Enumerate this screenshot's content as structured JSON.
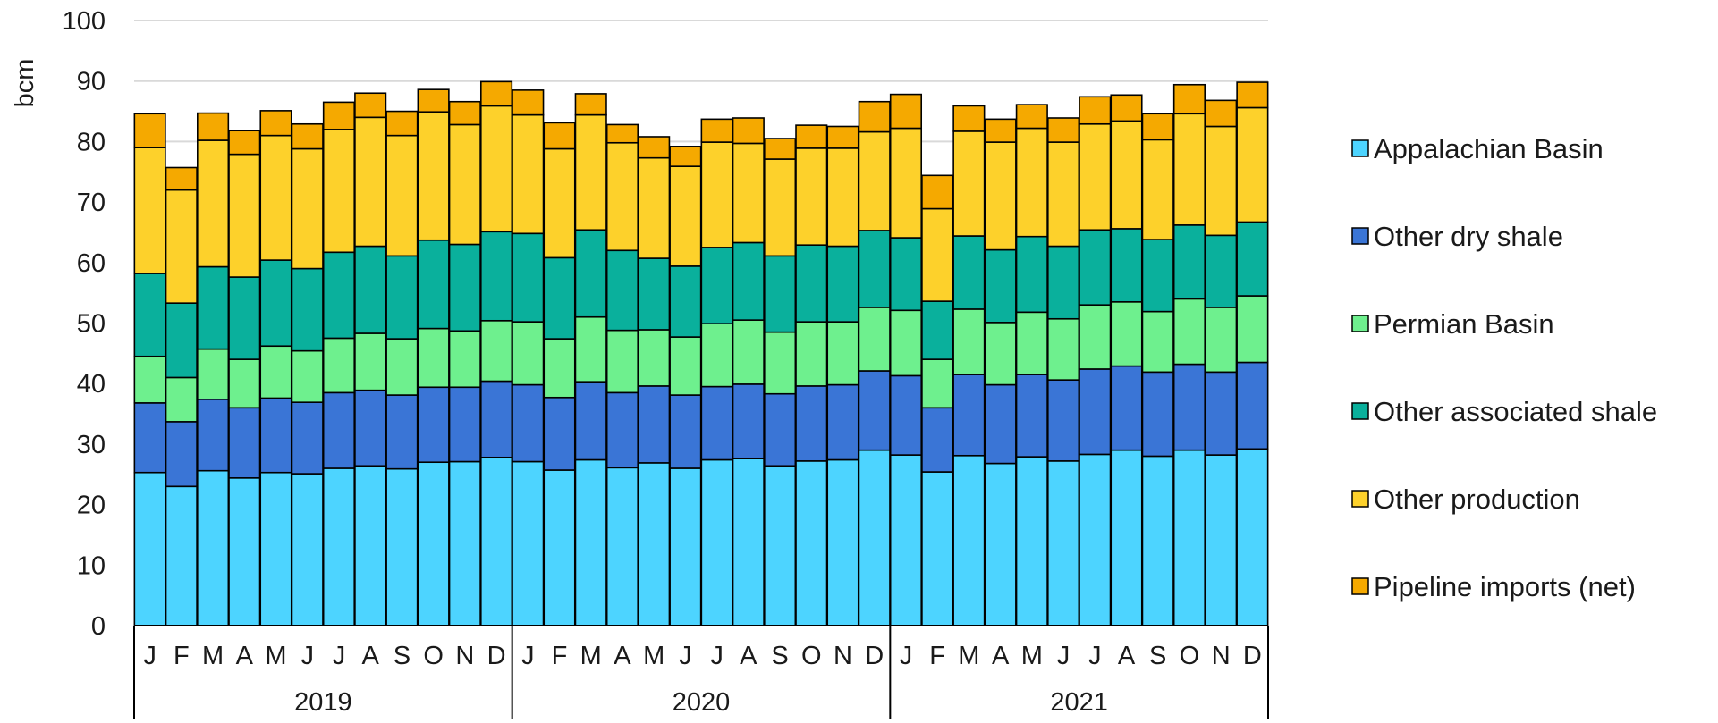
{
  "chart_data": {
    "type": "bar",
    "stacked": true,
    "title": "",
    "xlabel": "",
    "ylabel": "bcm",
    "ylim": [
      0,
      100
    ],
    "yticks": [
      0,
      10,
      20,
      30,
      40,
      50,
      60,
      70,
      80,
      90,
      100
    ],
    "grid": "horizontal",
    "legend_position": "right",
    "years": [
      {
        "label": "2019",
        "months": 12
      },
      {
        "label": "2020",
        "months": 12
      },
      {
        "label": "2021",
        "months": 12
      }
    ],
    "categories": [
      "J",
      "F",
      "M",
      "A",
      "M",
      "J",
      "J",
      "A",
      "S",
      "O",
      "N",
      "D",
      "J",
      "F",
      "M",
      "A",
      "M",
      "J",
      "J",
      "A",
      "S",
      "O",
      "N",
      "D",
      "J",
      "F",
      "M",
      "A",
      "M",
      "J",
      "J",
      "A",
      "S",
      "O",
      "N",
      "D"
    ],
    "series": [
      {
        "name": "Appalachian Basin",
        "color": "#4dd4ff",
        "values": [
          25.3,
          23.0,
          25.6,
          24.4,
          25.3,
          25.1,
          26.0,
          26.4,
          25.9,
          27.0,
          27.1,
          27.8,
          27.1,
          25.7,
          27.4,
          26.1,
          26.9,
          26.0,
          27.4,
          27.6,
          26.4,
          27.2,
          27.4,
          29.0,
          28.2,
          25.4,
          28.1,
          26.8,
          27.9,
          27.2,
          28.3,
          29.0,
          28.0,
          29.0,
          28.2,
          29.2
        ]
      },
      {
        "name": "Other dry shale",
        "color": "#3a75d6",
        "values": [
          11.5,
          10.7,
          11.8,
          11.6,
          12.3,
          11.8,
          12.5,
          12.5,
          12.2,
          12.4,
          12.3,
          12.6,
          12.7,
          12.0,
          12.9,
          12.4,
          12.7,
          12.1,
          12.1,
          12.3,
          11.9,
          12.4,
          12.4,
          13.1,
          13.1,
          10.6,
          13.4,
          13.0,
          13.6,
          13.4,
          14.1,
          13.9,
          13.9,
          14.2,
          13.7,
          14.3
        ]
      },
      {
        "name": "Permian Basin",
        "color": "#6ef08e",
        "values": [
          7.7,
          7.3,
          8.3,
          8.0,
          8.6,
          8.5,
          9.0,
          9.4,
          9.3,
          9.7,
          9.3,
          10.0,
          10.4,
          9.7,
          10.7,
          10.3,
          9.3,
          9.6,
          10.4,
          10.6,
          10.2,
          10.6,
          10.4,
          10.5,
          10.8,
          8.0,
          10.8,
          10.3,
          10.3,
          10.1,
          10.6,
          10.6,
          10.0,
          10.8,
          10.7,
          11.0
        ]
      },
      {
        "name": "Other associated shale",
        "color": "#0ab09c",
        "values": [
          13.7,
          12.3,
          13.6,
          13.6,
          14.2,
          13.6,
          14.2,
          14.4,
          13.7,
          14.6,
          14.3,
          14.7,
          14.6,
          13.4,
          14.4,
          13.2,
          11.8,
          11.7,
          12.6,
          12.8,
          12.6,
          12.7,
          12.5,
          12.7,
          12.0,
          9.6,
          12.1,
          12.0,
          12.5,
          12.0,
          12.4,
          12.1,
          11.9,
          12.2,
          11.9,
          12.2
        ]
      },
      {
        "name": "Other production",
        "color": "#fdd12b",
        "values": [
          20.8,
          18.7,
          20.9,
          20.3,
          20.6,
          19.8,
          20.3,
          21.3,
          19.9,
          21.2,
          19.8,
          20.8,
          19.6,
          18.0,
          19.0,
          17.8,
          16.6,
          16.5,
          17.4,
          16.4,
          16.0,
          16.0,
          16.2,
          16.3,
          18.1,
          15.3,
          17.3,
          17.8,
          17.9,
          17.2,
          17.5,
          17.8,
          16.5,
          18.4,
          18.0,
          18.9
        ]
      },
      {
        "name": "Pipeline imports (net)",
        "color": "#f5a900",
        "values": [
          5.6,
          3.7,
          4.5,
          3.9,
          4.1,
          4.1,
          4.5,
          4.0,
          4.0,
          3.7,
          3.8,
          4.0,
          4.1,
          4.3,
          3.5,
          3.0,
          3.5,
          3.3,
          3.8,
          4.2,
          3.4,
          3.8,
          3.6,
          5.0,
          5.6,
          5.5,
          4.2,
          3.8,
          3.9,
          4.0,
          4.5,
          4.3,
          4.3,
          4.8,
          4.3,
          4.2
        ]
      }
    ]
  }
}
